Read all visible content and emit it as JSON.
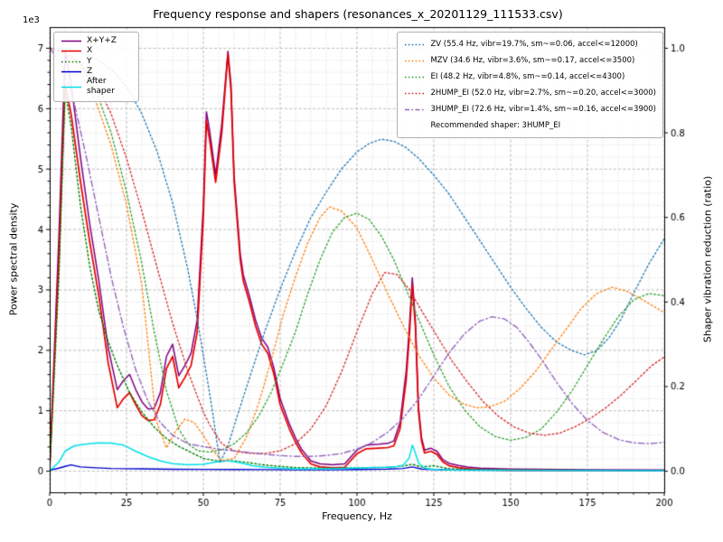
{
  "title": "Frequency response and shapers (resonances_x_20201129_111533.csv)",
  "axes": {
    "xlabel": "Frequency, Hz",
    "ylabel_left": "Power spectral density",
    "ylabel_right": "Shaper vibration reduction (ratio)",
    "offset_text": "1e3",
    "x_ticks": [
      "0",
      "25",
      "50",
      "75",
      "100",
      "125",
      "150",
      "175",
      "200"
    ],
    "y_left_ticks": [
      "0",
      "1",
      "2",
      "3",
      "4",
      "5",
      "6",
      "7"
    ],
    "y_right_ticks": [
      "0.0",
      "0.2",
      "0.4",
      "0.6",
      "0.8",
      "1.0"
    ]
  },
  "chart_data": {
    "type": "line",
    "title": "Frequency response and shapers (resonances_x_20201129_111533.csv)",
    "xlabel": "Frequency, Hz",
    "ylabel_left": "Power spectral density",
    "ylabel_right": "Shaper vibration reduction (ratio)",
    "xlim": [
      0,
      200
    ],
    "ylim_left": [
      0,
      7000
    ],
    "ylim_right": [
      0,
      1
    ],
    "x_minor_step": 5,
    "x_major_step": 25,
    "y_left_minor_step": 200,
    "y_left_major_step": 1000,
    "grid": "major+minor",
    "legend_positions": [
      "upper left",
      "upper right"
    ],
    "recommended_shaper": "3HUMP_EI",
    "recommended_text": "Recommended shaper: 3HUMP_EI",
    "series": [
      {
        "name": "sum",
        "label": "X+Y+Z",
        "legend": "psd",
        "axis": "left",
        "color": "#800080",
        "style": "solid",
        "lw": 1.5,
        "x": [
          0,
          3,
          5,
          7,
          10,
          13,
          16,
          19,
          22,
          24,
          26,
          28,
          30,
          32,
          34,
          36,
          38,
          40,
          42,
          44,
          46,
          48,
          50,
          51,
          52,
          54,
          56,
          58,
          59,
          60,
          62,
          63,
          65,
          67,
          69,
          71,
          73,
          75,
          78,
          80,
          82,
          85,
          88,
          92,
          96,
          100,
          103,
          107,
          110,
          112,
          114,
          116,
          117,
          118,
          119,
          120,
          121,
          122,
          124,
          126,
          128,
          130,
          133,
          136,
          140,
          150,
          175,
          200
        ],
        "y": [
          70,
          3900,
          6950,
          6400,
          5200,
          4100,
          3150,
          2050,
          1350,
          1500,
          1600,
          1350,
          1150,
          1030,
          1040,
          1300,
          1900,
          2100,
          1580,
          1750,
          1950,
          2500,
          4400,
          5950,
          5650,
          4900,
          5750,
          6950,
          6400,
          4900,
          3600,
          3250,
          2900,
          2500,
          2200,
          2050,
          1700,
          1200,
          780,
          550,
          360,
          170,
          120,
          105,
          120,
          350,
          430,
          445,
          460,
          500,
          800,
          1650,
          2350,
          3200,
          2500,
          1080,
          560,
          350,
          380,
          330,
          190,
          130,
          95,
          70,
          50,
          35,
          25,
          20
        ]
      },
      {
        "name": "x",
        "label": "X",
        "legend": "psd",
        "axis": "left",
        "color": "#e60000",
        "style": "solid",
        "lw": 1.7,
        "x": [
          0,
          3,
          5,
          7,
          10,
          13,
          16,
          19,
          22,
          24,
          26,
          28,
          30,
          32,
          34,
          36,
          38,
          40,
          42,
          44,
          46,
          48,
          50,
          51,
          52,
          54,
          56,
          58,
          59,
          60,
          62,
          63,
          65,
          67,
          69,
          71,
          73,
          75,
          78,
          80,
          82,
          85,
          88,
          92,
          96,
          100,
          103,
          107,
          110,
          112,
          114,
          116,
          117,
          118,
          119,
          120,
          121,
          122,
          124,
          126,
          128,
          130,
          133,
          136,
          140,
          150,
          175,
          200
        ],
        "y": [
          30,
          3500,
          6400,
          5900,
          4800,
          3800,
          2900,
          1800,
          1050,
          1200,
          1300,
          1100,
          920,
          840,
          850,
          1100,
          1700,
          1900,
          1380,
          1550,
          1750,
          2300,
          4200,
          5800,
          5500,
          4780,
          5600,
          6900,
          6300,
          4800,
          3500,
          3150,
          2800,
          2400,
          2100,
          1950,
          1600,
          1100,
          700,
          480,
          300,
          120,
          70,
          55,
          65,
          290,
          370,
          380,
          390,
          420,
          700,
          1500,
          2200,
          3080,
          2400,
          1000,
          500,
          300,
          330,
          280,
          150,
          90,
          60,
          40,
          25,
          15,
          10,
          8
        ]
      },
      {
        "name": "y",
        "label": "Y",
        "legend": "psd",
        "axis": "left",
        "color": "#008000",
        "style": "dotted",
        "lw": 1.4,
        "x": [
          0,
          3,
          5,
          7,
          10,
          13,
          16,
          19,
          22,
          26,
          30,
          34,
          38,
          42,
          46,
          50,
          55,
          60,
          65,
          70,
          75,
          80,
          90,
          100,
          110,
          115,
          118,
          121,
          125,
          130,
          140,
          160,
          200
        ],
        "y": [
          30,
          3200,
          6300,
          5700,
          4400,
          3400,
          2650,
          2150,
          1750,
          1300,
          980,
          730,
          540,
          410,
          310,
          210,
          165,
          170,
          140,
          100,
          80,
          60,
          50,
          55,
          65,
          85,
          115,
          70,
          90,
          40,
          25,
          18,
          12
        ]
      },
      {
        "name": "z",
        "label": "Z",
        "legend": "psd",
        "axis": "left",
        "color": "#0000cc",
        "style": "solid",
        "lw": 1.4,
        "x": [
          0,
          3,
          5,
          7,
          10,
          15,
          20,
          30,
          40,
          50,
          60,
          70,
          80,
          90,
          100,
          110,
          115,
          118,
          121,
          130,
          150,
          200
        ],
        "y": [
          15,
          50,
          80,
          105,
          70,
          55,
          45,
          38,
          32,
          30,
          28,
          25,
          22,
          22,
          28,
          35,
          45,
          70,
          35,
          20,
          14,
          10
        ]
      },
      {
        "name": "after-shaper",
        "label": "After shaper",
        "legend": "psd",
        "axis": "left",
        "color": "#00e0e8",
        "style": "solid",
        "lw": 1.5,
        "x": [
          0,
          3,
          5,
          8,
          12,
          16,
          20,
          24,
          28,
          32,
          36,
          40,
          45,
          50,
          54,
          58,
          62,
          66,
          70,
          75,
          80,
          90,
          100,
          105,
          110,
          113,
          115,
          117,
          118,
          119,
          120,
          122,
          124,
          127,
          130,
          140,
          160,
          200
        ],
        "y": [
          10,
          150,
          330,
          420,
          450,
          470,
          465,
          430,
          330,
          240,
          170,
          125,
          105,
          115,
          150,
          175,
          140,
          90,
          65,
          50,
          40,
          38,
          50,
          60,
          65,
          75,
          95,
          220,
          430,
          300,
          140,
          50,
          35,
          25,
          20,
          15,
          12,
          10
        ]
      },
      {
        "name": "zv",
        "label": "ZV (55.4 Hz, vibr=19.7%, sm~=0.06, accel<=12000)",
        "legend": "shaper",
        "axis": "right",
        "color": "#1f77b4",
        "style": "dotted",
        "lw": 1.3,
        "x": [
          0,
          5,
          10,
          15,
          20,
          25,
          30,
          35,
          40,
          45,
          48,
          51,
          53,
          55.4,
          58,
          61,
          65,
          70,
          75,
          80,
          85,
          90,
          95,
          100,
          104,
          108,
          112,
          116,
          120,
          125,
          130,
          135,
          140,
          145,
          150,
          155,
          160,
          165,
          170,
          174,
          178,
          182,
          186,
          190,
          195,
          200
        ],
        "y": [
          1.0,
          1.0,
          0.99,
          0.975,
          0.95,
          0.91,
          0.845,
          0.755,
          0.635,
          0.475,
          0.36,
          0.23,
          0.14,
          0.02,
          0.06,
          0.13,
          0.22,
          0.33,
          0.43,
          0.52,
          0.6,
          0.66,
          0.715,
          0.755,
          0.775,
          0.785,
          0.78,
          0.765,
          0.74,
          0.7,
          0.655,
          0.6,
          0.545,
          0.49,
          0.435,
          0.385,
          0.34,
          0.305,
          0.285,
          0.275,
          0.285,
          0.315,
          0.36,
          0.42,
          0.49,
          0.55
        ]
      },
      {
        "name": "mzv",
        "label": "MZV (34.6 Hz, vibr=3.6%, sm~=0.17, accel<=3500)",
        "legend": "shaper",
        "axis": "right",
        "color": "#ff7f0e",
        "style": "dotted",
        "lw": 1.3,
        "x": [
          0,
          5,
          10,
          15,
          20,
          25,
          30,
          34.6,
          38,
          41,
          44,
          47,
          50,
          53,
          56,
          60,
          64,
          68,
          72,
          76,
          80,
          84,
          88,
          91,
          95,
          100,
          105,
          110,
          115,
          120,
          125,
          130,
          135,
          139,
          143,
          148,
          153,
          158,
          163,
          168,
          173,
          178,
          183,
          188,
          193,
          200
        ],
        "y": [
          1.0,
          0.985,
          0.945,
          0.875,
          0.77,
          0.63,
          0.44,
          0.12,
          0.055,
          0.095,
          0.123,
          0.115,
          0.085,
          0.05,
          0.025,
          0.03,
          0.08,
          0.16,
          0.26,
          0.37,
          0.46,
          0.54,
          0.6,
          0.625,
          0.615,
          0.575,
          0.5,
          0.42,
          0.345,
          0.275,
          0.22,
          0.18,
          0.158,
          0.15,
          0.152,
          0.165,
          0.195,
          0.235,
          0.285,
          0.335,
          0.385,
          0.42,
          0.435,
          0.425,
          0.405,
          0.375
        ]
      },
      {
        "name": "ei",
        "label": "EI (48.2 Hz, vibr=4.8%, sm~=0.14, accel<=4300)",
        "legend": "shaper",
        "axis": "right",
        "color": "#2ca02c",
        "style": "dotted",
        "lw": 1.3,
        "x": [
          0,
          5,
          10,
          15,
          20,
          25,
          30,
          34,
          38,
          42,
          45,
          48.2,
          52,
          56,
          60,
          64,
          68,
          72,
          76,
          80,
          84,
          88,
          92,
          96,
          100,
          104,
          108,
          112,
          116,
          120,
          125,
          130,
          135,
          140,
          145,
          150,
          155,
          160,
          165,
          170,
          175,
          180,
          185,
          190,
          195,
          200
        ],
        "y": [
          1.0,
          0.99,
          0.96,
          0.9,
          0.8,
          0.66,
          0.49,
          0.33,
          0.19,
          0.1,
          0.065,
          0.048,
          0.045,
          0.05,
          0.065,
          0.09,
          0.13,
          0.185,
          0.255,
          0.33,
          0.42,
          0.5,
          0.565,
          0.6,
          0.61,
          0.595,
          0.555,
          0.5,
          0.43,
          0.36,
          0.275,
          0.2,
          0.145,
          0.105,
          0.082,
          0.073,
          0.08,
          0.1,
          0.14,
          0.19,
          0.25,
          0.31,
          0.365,
          0.405,
          0.42,
          0.415
        ]
      },
      {
        "name": "2hump-ei",
        "label": "2HUMP_EI (52.0 Hz, vibr=2.7%, sm~=0.20, accel<=3000)",
        "legend": "shaper",
        "axis": "right",
        "color": "#d62728",
        "style": "dotted",
        "lw": 1.3,
        "x": [
          0,
          5,
          10,
          15,
          20,
          25,
          30,
          35,
          40,
          45,
          50,
          52,
          56,
          60,
          65,
          70,
          75,
          80,
          85,
          90,
          95,
          100,
          105,
          109,
          113,
          117,
          121,
          126,
          131,
          136,
          141,
          146,
          151,
          156,
          161,
          166,
          171,
          176,
          181,
          186,
          191,
          196,
          200
        ],
        "y": [
          1.0,
          0.99,
          0.965,
          0.92,
          0.845,
          0.74,
          0.615,
          0.48,
          0.35,
          0.235,
          0.14,
          0.11,
          0.065,
          0.048,
          0.042,
          0.042,
          0.048,
          0.065,
          0.1,
          0.155,
          0.235,
          0.33,
          0.42,
          0.47,
          0.465,
          0.43,
          0.38,
          0.32,
          0.26,
          0.21,
          0.165,
          0.13,
          0.105,
          0.09,
          0.085,
          0.09,
          0.105,
          0.125,
          0.15,
          0.18,
          0.215,
          0.25,
          0.27
        ]
      },
      {
        "name": "3hump-ei",
        "label": "3HUMP_EI (72.6 Hz, vibr=1.4%, sm~=0.16, accel<=3900)",
        "legend": "shaper",
        "axis": "right",
        "color": "#9467bd",
        "style": "dashdot",
        "lw": 1.4,
        "x": [
          0,
          4,
          8,
          12,
          16,
          20,
          24,
          28,
          32,
          36,
          40,
          45,
          50,
          55,
          60,
          65,
          70,
          75,
          80,
          85,
          90,
          95,
          100,
          105,
          110,
          115,
          120,
          125,
          130,
          135,
          140,
          144,
          148,
          152,
          156,
          160,
          165,
          170,
          175,
          180,
          185,
          190,
          195,
          200
        ],
        "y": [
          1.0,
          0.96,
          0.87,
          0.74,
          0.6,
          0.46,
          0.34,
          0.24,
          0.165,
          0.115,
          0.085,
          0.065,
          0.058,
          0.052,
          0.048,
          0.044,
          0.04,
          0.037,
          0.035,
          0.035,
          0.037,
          0.042,
          0.052,
          0.068,
          0.092,
          0.125,
          0.17,
          0.225,
          0.28,
          0.325,
          0.355,
          0.365,
          0.36,
          0.34,
          0.305,
          0.265,
          0.21,
          0.16,
          0.12,
          0.092,
          0.075,
          0.067,
          0.065,
          0.068
        ]
      }
    ]
  }
}
